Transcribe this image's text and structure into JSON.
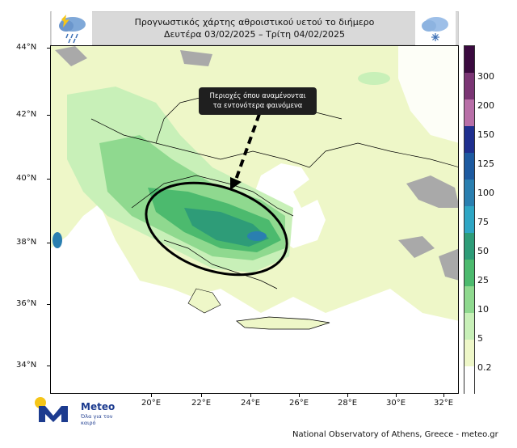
{
  "header": {
    "title_line1": "Προγνωστικός χάρτης αθροιστικού υετού το διήμερο",
    "title_line2": "Δευτέρα 03/02/2025 – Τρίτη 04/02/2025",
    "left_icon": "storm-cloud-icon",
    "right_icon": "snow-cloud-icon"
  },
  "callout": {
    "line1": "Περιοχές όπου αναμένονται",
    "line2": "τα εντονότερα φαινόμενα"
  },
  "axes": {
    "lat_labels": [
      "44°N",
      "42°N",
      "40°N",
      "38°N",
      "36°N",
      "34°N"
    ],
    "lon_labels": [
      "20°E",
      "22°E",
      "24°E",
      "26°E",
      "28°E",
      "30°E",
      "32°E"
    ]
  },
  "colorbar": {
    "labels": [
      "300",
      "200",
      "150",
      "125",
      "100",
      "75",
      "50",
      "25",
      "10",
      "5",
      "0.2"
    ],
    "colors": [
      "#3a0a3f",
      "#7a3574",
      "#b86fa8",
      "#1f2f8f",
      "#1d5aa0",
      "#2a7fb0",
      "#2fa6c4",
      "#2e9c78",
      "#4cba6e",
      "#8fd98f",
      "#c8f0b8",
      "#eef7c8",
      "#ffffff"
    ]
  },
  "map_colors": {
    "sea": "#ffffff",
    "land_low": "#eef7c8",
    "rain_light": "#c8f0b8",
    "rain_med": "#8fd98f",
    "rain_heavy": "#4cba6e",
    "rain_vheavy": "#2e9c78",
    "rain_extreme": "#2a7fb0",
    "no_data": "#a9a9a9"
  },
  "logo": {
    "name": "Meteo",
    "tagline": "Όλα για τον καιρό"
  },
  "footer": "National Observatory of Athens, Greece - meteo.gr"
}
